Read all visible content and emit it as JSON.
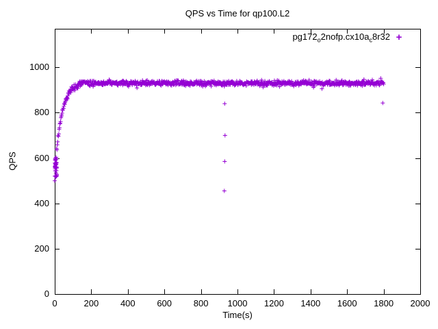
{
  "figure": {
    "background": "#ffffff",
    "border_color": "#000000"
  },
  "chart_data": {
    "type": "scatter",
    "title": "QPS vs Time for qp100.L2",
    "xlabel": "Time(s)",
    "ylabel": "QPS",
    "xlim": [
      0,
      2000
    ],
    "ylim": [
      0,
      1170
    ],
    "xticks": [
      0,
      200,
      400,
      600,
      800,
      1000,
      1200,
      1400,
      1600,
      1800,
      2000
    ],
    "yticks": [
      0,
      200,
      400,
      600,
      800,
      1000
    ],
    "grid": false,
    "legend_position": "top-right-inside",
    "legend_marker": "+",
    "series": [
      {
        "name": "pg172_o2nofp.cx10a_c8r32",
        "label_parts": [
          {
            "text": "pg172"
          },
          {
            "text": "o",
            "sub": true
          },
          {
            "text": "2nofp.cx10a"
          },
          {
            "text": "c",
            "sub": true
          },
          {
            "text": "8r32"
          }
        ],
        "color": "#9400d3",
        "marker": "plus",
        "model": {
          "description": "QPS ramps from ~520 at t=0 up to a steady plateau of ~930 QPS by ~t=130s, holding until t=1800s",
          "start_qps": 520,
          "plateau_qps": 930,
          "ramp_tau_s": 35,
          "ramp_end_s": 130,
          "t_end_s": 1800,
          "sample_step_s": 2,
          "ramp_jitter_qps": 16,
          "ramp_early_jitter_qps": 25,
          "plateau_jitter_qps": 14,
          "plateau_wide_jitter_qps": 26,
          "wide_jitter_every_n": 23,
          "seed": 42,
          "start_cluster": {
            "t_range": [
              0,
              12
            ],
            "qps_range": [
              515,
              610
            ],
            "count": 30
          }
        },
        "outliers": [
          [
            930,
            840
          ],
          [
            932,
            700
          ],
          [
            930,
            585
          ],
          [
            928,
            455
          ],
          [
            1795,
            843
          ]
        ]
      }
    ]
  }
}
